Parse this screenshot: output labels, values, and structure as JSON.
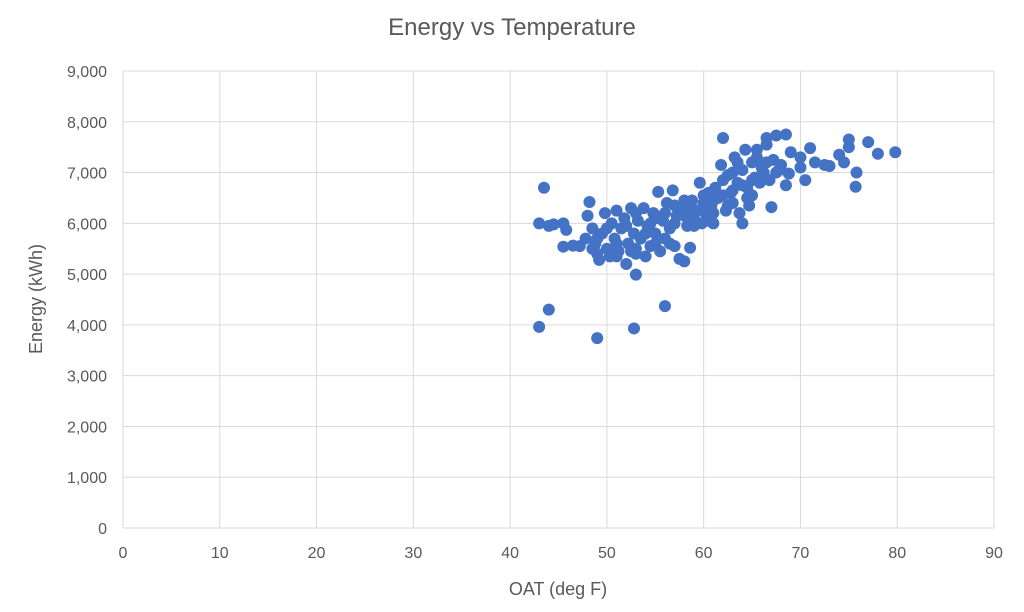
{
  "chart_data": {
    "type": "scatter",
    "title": "Energy vs Temperature",
    "xlabel": "OAT (deg F)",
    "ylabel": "Energy (kWh)",
    "xlim": [
      0,
      90
    ],
    "ylim": [
      0,
      9000
    ],
    "xticks": [
      "0",
      "10",
      "20",
      "30",
      "40",
      "50",
      "60",
      "70",
      "80",
      "90"
    ],
    "yticks": [
      "0",
      "1,000",
      "2,000",
      "3,000",
      "4,000",
      "5,000",
      "6,000",
      "7,000",
      "8,000",
      "9,000"
    ],
    "grid": true,
    "legend": "none",
    "marker_color": "#4472C4",
    "points": [
      [
        43,
        3960
      ],
      [
        44,
        4300
      ],
      [
        49,
        3740
      ],
      [
        52.8,
        3930
      ],
      [
        56,
        4370
      ],
      [
        53,
        4990
      ],
      [
        43.5,
        6700
      ],
      [
        43,
        6000
      ],
      [
        44,
        5950
      ],
      [
        44.5,
        5980
      ],
      [
        45.5,
        6000
      ],
      [
        45.8,
        5870
      ],
      [
        45.5,
        5540
      ],
      [
        46.5,
        5560
      ],
      [
        47.2,
        5550
      ],
      [
        47.8,
        5700
      ],
      [
        48.2,
        6420
      ],
      [
        48,
        6150
      ],
      [
        48.5,
        5900
      ],
      [
        48.8,
        5600
      ],
      [
        49,
        5400
      ],
      [
        49.2,
        5280
      ],
      [
        49.5,
        5800
      ],
      [
        49.8,
        6200
      ],
      [
        50,
        5500
      ],
      [
        50.3,
        5350
      ],
      [
        50.5,
        6000
      ],
      [
        50.8,
        5700
      ],
      [
        51,
        6250
      ],
      [
        51.2,
        5450
      ],
      [
        51.5,
        5900
      ],
      [
        51.8,
        6100
      ],
      [
        52,
        5200
      ],
      [
        52.2,
        5600
      ],
      [
        52.5,
        6300
      ],
      [
        52.8,
        5800
      ],
      [
        53,
        5400
      ],
      [
        53.2,
        6050
      ],
      [
        53.5,
        5700
      ],
      [
        53.8,
        6300
      ],
      [
        54,
        5350
      ],
      [
        54.2,
        5950
      ],
      [
        54.5,
        5550
      ],
      [
        54.8,
        6200
      ],
      [
        55,
        5800
      ],
      [
        55.3,
        6620
      ],
      [
        55.5,
        5450
      ],
      [
        55.8,
        6050
      ],
      [
        56,
        5700
      ],
      [
        56.2,
        6400
      ],
      [
        56.5,
        5900
      ],
      [
        56.8,
        6650
      ],
      [
        57,
        5550
      ],
      [
        57.2,
        6150
      ],
      [
        57.5,
        5300
      ],
      [
        57.8,
        6300
      ],
      [
        58,
        5250
      ],
      [
        58.3,
        5950
      ],
      [
        58.6,
        5520
      ],
      [
        58.8,
        6450
      ],
      [
        59,
        6100
      ],
      [
        59.3,
        6250
      ],
      [
        59.6,
        6800
      ],
      [
        59.8,
        6000
      ],
      [
        60,
        6400
      ],
      [
        60.3,
        6150
      ],
      [
        60.5,
        6600
      ],
      [
        60.8,
        6350
      ],
      [
        61,
        6000
      ],
      [
        61.2,
        6700
      ],
      [
        61.5,
        6500
      ],
      [
        61.8,
        7150
      ],
      [
        62,
        7680
      ],
      [
        62,
        6850
      ],
      [
        62.3,
        6250
      ],
      [
        62.5,
        6950
      ],
      [
        62.8,
        6600
      ],
      [
        63,
        6400
      ],
      [
        63.2,
        7300
      ],
      [
        63.5,
        6800
      ],
      [
        63.7,
        6200
      ],
      [
        64,
        7050
      ],
      [
        64,
        6000
      ],
      [
        64.3,
        7450
      ],
      [
        64.5,
        6700
      ],
      [
        64.7,
        6350
      ],
      [
        65,
        7200
      ],
      [
        65,
        6550
      ],
      [
        65.3,
        6900
      ],
      [
        65.5,
        7450
      ],
      [
        65.8,
        6800
      ],
      [
        66,
        7100
      ],
      [
        66.2,
        7000
      ],
      [
        66.5,
        7680
      ],
      [
        66.5,
        7550
      ],
      [
        66.8,
        6850
      ],
      [
        67,
        6320
      ],
      [
        67.2,
        7250
      ],
      [
        67.5,
        7730
      ],
      [
        67.8,
        7050
      ],
      [
        68,
        7150
      ],
      [
        68.5,
        7750
      ],
      [
        68.5,
        6750
      ],
      [
        68.8,
        6980
      ],
      [
        69,
        7400
      ],
      [
        70,
        7300
      ],
      [
        70,
        7100
      ],
      [
        70.5,
        6850
      ],
      [
        71,
        7480
      ],
      [
        71.5,
        7200
      ],
      [
        72.5,
        7150
      ],
      [
        73,
        7130
      ],
      [
        74,
        7350
      ],
      [
        74.5,
        7200
      ],
      [
        75,
        7650
      ],
      [
        75,
        7500
      ],
      [
        75.7,
        6720
      ],
      [
        75.8,
        7000
      ],
      [
        77,
        7600
      ],
      [
        78,
        7370
      ],
      [
        79.8,
        7400
      ],
      [
        50,
        5900
      ],
      [
        51,
        5600
      ],
      [
        52,
        5950
      ],
      [
        53,
        6200
      ],
      [
        54,
        5800
      ],
      [
        55,
        6100
      ],
      [
        56,
        6200
      ],
      [
        57,
        6000
      ],
      [
        58,
        6150
      ],
      [
        59,
        5950
      ],
      [
        60,
        6250
      ],
      [
        61,
        6450
      ],
      [
        62,
        6550
      ],
      [
        63,
        6650
      ],
      [
        64,
        6750
      ],
      [
        65,
        6850
      ],
      [
        66,
        6950
      ],
      [
        63,
        7000
      ],
      [
        61,
        6200
      ],
      [
        60,
        6550
      ],
      [
        58,
        6450
      ],
      [
        57,
        6350
      ],
      [
        55,
        5600
      ],
      [
        53,
        5500
      ],
      [
        51,
        5350
      ],
      [
        49,
        5700
      ],
      [
        48.5,
        5500
      ],
      [
        50.5,
        5450
      ],
      [
        52.5,
        5450
      ],
      [
        54.5,
        6000
      ],
      [
        56.5,
        5600
      ],
      [
        58.5,
        6250
      ],
      [
        60.5,
        6050
      ],
      [
        62.5,
        6350
      ],
      [
        64.5,
        6500
      ],
      [
        66.5,
        7200
      ],
      [
        67.5,
        7000
      ],
      [
        65.5,
        7300
      ],
      [
        63.5,
        7200
      ]
    ]
  }
}
